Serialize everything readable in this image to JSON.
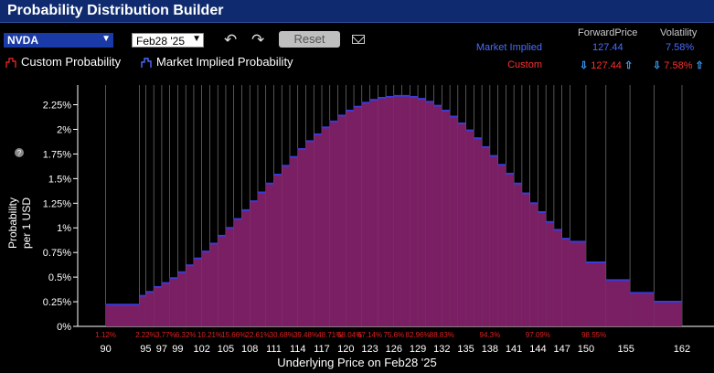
{
  "window": {
    "title": "Probability Distribution Builder"
  },
  "toolbar": {
    "symbol": "NVDA",
    "expiry": "Feb28 '25",
    "reset_label": "Reset",
    "undo_icon": "undo-icon",
    "redo_icon": "redo-icon",
    "mail_icon": "mail-icon"
  },
  "legend": {
    "custom": "Custom Probability",
    "market": "Market Implied Probability"
  },
  "summary": {
    "forward_header": "ForwardPrice",
    "volatility_header": "Volatility",
    "market_label": "Market Implied",
    "market_forward": "127.44",
    "market_vol": "7.58%",
    "custom_label": "Custom",
    "custom_forward": "127.44",
    "custom_vol": "7.58%"
  },
  "colors": {
    "bar": "#7a1f63",
    "bar_top": "#3b3bd8",
    "grid": "#bbbbbb",
    "pct": "#e02020"
  },
  "chart_data": {
    "type": "bar",
    "title": "",
    "ylabel": "Probability per 1 USD",
    "xlabel": "Underlying Price on Feb28 '25",
    "ylim": [
      0,
      2.45
    ],
    "yticks": [
      "0%",
      "0.25%",
      "0.5%",
      "0.75%",
      "1%",
      "1.25%",
      "1.5%",
      "1.75%",
      "2%",
      "2.25%"
    ],
    "x_tick_labels": [
      {
        "x": 90,
        "label": "90"
      },
      {
        "x": 95,
        "label": "95"
      },
      {
        "x": 97,
        "label": "97"
      },
      {
        "x": 99,
        "label": "99"
      },
      {
        "x": 102,
        "label": "102"
      },
      {
        "x": 105,
        "label": "105"
      },
      {
        "x": 108,
        "label": "108"
      },
      {
        "x": 111,
        "label": "111"
      },
      {
        "x": 114,
        "label": "114"
      },
      {
        "x": 117,
        "label": "117"
      },
      {
        "x": 120,
        "label": "120"
      },
      {
        "x": 123,
        "label": "123"
      },
      {
        "x": 126,
        "label": "126"
      },
      {
        "x": 129,
        "label": "129"
      },
      {
        "x": 132,
        "label": "132"
      },
      {
        "x": 135,
        "label": "135"
      },
      {
        "x": 138,
        "label": "138"
      },
      {
        "x": 141,
        "label": "141"
      },
      {
        "x": 144,
        "label": "144"
      },
      {
        "x": 147,
        "label": "147"
      },
      {
        "x": 150,
        "label": "150"
      },
      {
        "x": 155,
        "label": "155"
      },
      {
        "x": 162,
        "label": "162"
      }
    ],
    "cumulative_labels": [
      {
        "x": 90,
        "label": "1.12%"
      },
      {
        "x": 95,
        "label": "2.22%"
      },
      {
        "x": 97.5,
        "label": "3.77%"
      },
      {
        "x": 100,
        "label": "6.32%"
      },
      {
        "x": 103,
        "label": "10.21%"
      },
      {
        "x": 106,
        "label": "15.66%"
      },
      {
        "x": 109,
        "label": "22.61%"
      },
      {
        "x": 112,
        "label": "30.68%"
      },
      {
        "x": 115,
        "label": "39.48%"
      },
      {
        "x": 118,
        "label": "48.71%"
      },
      {
        "x": 120.5,
        "label": "58.04%"
      },
      {
        "x": 123,
        "label": "67.14%"
      },
      {
        "x": 126,
        "label": "75.6%"
      },
      {
        "x": 129,
        "label": "82.96%"
      },
      {
        "x": 132,
        "label": "88.83%"
      },
      {
        "x": 138,
        "label": "94.3%"
      },
      {
        "x": 144,
        "label": "97.09%"
      },
      {
        "x": 151,
        "label": "98.55%"
      }
    ],
    "x_range": [
      86.5,
      166
    ],
    "bins": [
      {
        "x0": 90,
        "x1": 94.2,
        "y": 0.22
      },
      {
        "x0": 94.2,
        "x1": 95,
        "y": 0.31
      },
      {
        "x0": 95,
        "x1": 96,
        "y": 0.35
      },
      {
        "x0": 96,
        "x1": 97,
        "y": 0.4
      },
      {
        "x0": 97,
        "x1": 98,
        "y": 0.44
      },
      {
        "x0": 98,
        "x1": 99,
        "y": 0.49
      },
      {
        "x0": 99,
        "x1": 100,
        "y": 0.55
      },
      {
        "x0": 100,
        "x1": 101,
        "y": 0.62
      },
      {
        "x0": 101,
        "x1": 102,
        "y": 0.69
      },
      {
        "x0": 102,
        "x1": 103,
        "y": 0.76
      },
      {
        "x0": 103,
        "x1": 104,
        "y": 0.84
      },
      {
        "x0": 104,
        "x1": 105,
        "y": 0.92
      },
      {
        "x0": 105,
        "x1": 106,
        "y": 1.0
      },
      {
        "x0": 106,
        "x1": 107,
        "y": 1.09
      },
      {
        "x0": 107,
        "x1": 108,
        "y": 1.18
      },
      {
        "x0": 108,
        "x1": 109,
        "y": 1.27
      },
      {
        "x0": 109,
        "x1": 110,
        "y": 1.36
      },
      {
        "x0": 110,
        "x1": 111,
        "y": 1.45
      },
      {
        "x0": 111,
        "x1": 112,
        "y": 1.54
      },
      {
        "x0": 112,
        "x1": 113,
        "y": 1.63
      },
      {
        "x0": 113,
        "x1": 114,
        "y": 1.72
      },
      {
        "x0": 114,
        "x1": 115,
        "y": 1.8
      },
      {
        "x0": 115,
        "x1": 116,
        "y": 1.88
      },
      {
        "x0": 116,
        "x1": 117,
        "y": 1.95
      },
      {
        "x0": 117,
        "x1": 118,
        "y": 2.02
      },
      {
        "x0": 118,
        "x1": 119,
        "y": 2.08
      },
      {
        "x0": 119,
        "x1": 120,
        "y": 2.14
      },
      {
        "x0": 120,
        "x1": 121,
        "y": 2.19
      },
      {
        "x0": 121,
        "x1": 122,
        "y": 2.23
      },
      {
        "x0": 122,
        "x1": 123,
        "y": 2.27
      },
      {
        "x0": 123,
        "x1": 124,
        "y": 2.3
      },
      {
        "x0": 124,
        "x1": 125,
        "y": 2.32
      },
      {
        "x0": 125,
        "x1": 126,
        "y": 2.33
      },
      {
        "x0": 126,
        "x1": 127,
        "y": 2.34
      },
      {
        "x0": 127,
        "x1": 128,
        "y": 2.34
      },
      {
        "x0": 128,
        "x1": 129,
        "y": 2.33
      },
      {
        "x0": 129,
        "x1": 130,
        "y": 2.31
      },
      {
        "x0": 130,
        "x1": 131,
        "y": 2.28
      },
      {
        "x0": 131,
        "x1": 132,
        "y": 2.24
      },
      {
        "x0": 132,
        "x1": 133,
        "y": 2.19
      },
      {
        "x0": 133,
        "x1": 134,
        "y": 2.13
      },
      {
        "x0": 134,
        "x1": 135,
        "y": 2.06
      },
      {
        "x0": 135,
        "x1": 136,
        "y": 1.99
      },
      {
        "x0": 136,
        "x1": 137,
        "y": 1.91
      },
      {
        "x0": 137,
        "x1": 138,
        "y": 1.82
      },
      {
        "x0": 138,
        "x1": 139,
        "y": 1.73
      },
      {
        "x0": 139,
        "x1": 140,
        "y": 1.64
      },
      {
        "x0": 140,
        "x1": 141,
        "y": 1.55
      },
      {
        "x0": 141,
        "x1": 142,
        "y": 1.45
      },
      {
        "x0": 142,
        "x1": 143,
        "y": 1.35
      },
      {
        "x0": 143,
        "x1": 144,
        "y": 1.25
      },
      {
        "x0": 144,
        "x1": 145,
        "y": 1.16
      },
      {
        "x0": 145,
        "x1": 146,
        "y": 1.06
      },
      {
        "x0": 146,
        "x1": 147,
        "y": 0.98
      },
      {
        "x0": 147,
        "x1": 148,
        "y": 0.89
      },
      {
        "x0": 148,
        "x1": 150,
        "y": 0.86
      },
      {
        "x0": 150,
        "x1": 152.5,
        "y": 0.65
      },
      {
        "x0": 152.5,
        "x1": 155.5,
        "y": 0.47
      },
      {
        "x0": 155.5,
        "x1": 158.5,
        "y": 0.34
      },
      {
        "x0": 158.5,
        "x1": 162,
        "y": 0.25
      }
    ]
  }
}
